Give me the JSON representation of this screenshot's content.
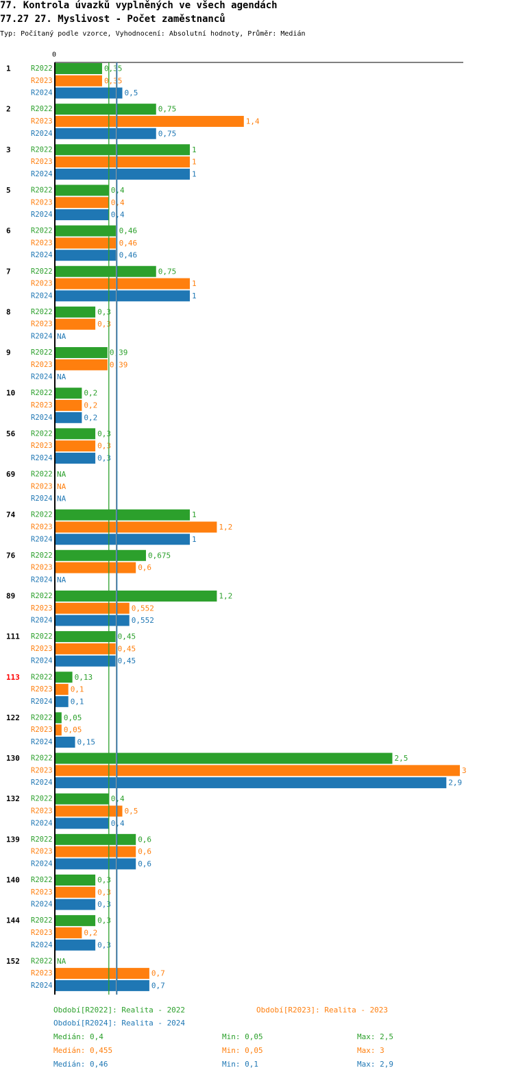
{
  "title": "77. Kontrola úvazků vyplněných ve všech agendách",
  "subtitle": "77.27 27. Myslivost - Počet zaměstnanců",
  "description": "Typ: Počítaný podle vzorce, Vyhodnocení: Absolutní hodnoty, Průměr: Medián",
  "colors": {
    "R2022": "#2ca02c",
    "R2023": "#ff7f0e",
    "R2024": "#1f77b4",
    "highlight": "#ff0000"
  },
  "chart_data": {
    "type": "bar",
    "orientation": "horizontal",
    "x_tick_label": "0",
    "xlim": [
      0,
      3
    ],
    "series_names": [
      "R2022",
      "R2023",
      "R2024"
    ],
    "groups": [
      {
        "label": "1",
        "highlight": false,
        "values": [
          {
            "v": 0.35,
            "t": "0,35"
          },
          {
            "v": 0.35,
            "t": "0,35"
          },
          {
            "v": 0.5,
            "t": "0,5"
          }
        ]
      },
      {
        "label": "2",
        "highlight": false,
        "values": [
          {
            "v": 0.75,
            "t": "0,75"
          },
          {
            "v": 1.4,
            "t": "1,4"
          },
          {
            "v": 0.75,
            "t": "0,75"
          }
        ]
      },
      {
        "label": "3",
        "highlight": false,
        "values": [
          {
            "v": 1,
            "t": "1"
          },
          {
            "v": 1,
            "t": "1"
          },
          {
            "v": 1,
            "t": "1"
          }
        ]
      },
      {
        "label": "5",
        "highlight": false,
        "values": [
          {
            "v": 0.4,
            "t": "0,4"
          },
          {
            "v": 0.4,
            "t": "0,4"
          },
          {
            "v": 0.4,
            "t": "0,4"
          }
        ]
      },
      {
        "label": "6",
        "highlight": false,
        "values": [
          {
            "v": 0.46,
            "t": "0,46"
          },
          {
            "v": 0.46,
            "t": "0,46"
          },
          {
            "v": 0.46,
            "t": "0,46"
          }
        ]
      },
      {
        "label": "7",
        "highlight": false,
        "values": [
          {
            "v": 0.75,
            "t": "0,75"
          },
          {
            "v": 1,
            "t": "1"
          },
          {
            "v": 1,
            "t": "1"
          }
        ]
      },
      {
        "label": "8",
        "highlight": false,
        "values": [
          {
            "v": 0.3,
            "t": "0,3"
          },
          {
            "v": 0.3,
            "t": "0,3"
          },
          {
            "v": null,
            "t": "NA"
          }
        ]
      },
      {
        "label": "9",
        "highlight": false,
        "values": [
          {
            "v": 0.39,
            "t": "0,39"
          },
          {
            "v": 0.39,
            "t": "0,39"
          },
          {
            "v": null,
            "t": "NA"
          }
        ]
      },
      {
        "label": "10",
        "highlight": false,
        "values": [
          {
            "v": 0.2,
            "t": "0,2"
          },
          {
            "v": 0.2,
            "t": "0,2"
          },
          {
            "v": 0.2,
            "t": "0,2"
          }
        ]
      },
      {
        "label": "56",
        "highlight": false,
        "values": [
          {
            "v": 0.3,
            "t": "0,3"
          },
          {
            "v": 0.3,
            "t": "0,3"
          },
          {
            "v": 0.3,
            "t": "0,3"
          }
        ]
      },
      {
        "label": "69",
        "highlight": false,
        "values": [
          {
            "v": null,
            "t": "NA"
          },
          {
            "v": null,
            "t": "NA"
          },
          {
            "v": null,
            "t": "NA"
          }
        ]
      },
      {
        "label": "74",
        "highlight": false,
        "values": [
          {
            "v": 1,
            "t": "1"
          },
          {
            "v": 1.2,
            "t": "1,2"
          },
          {
            "v": 1,
            "t": "1"
          }
        ]
      },
      {
        "label": "76",
        "highlight": false,
        "values": [
          {
            "v": 0.675,
            "t": "0,675"
          },
          {
            "v": 0.6,
            "t": "0,6"
          },
          {
            "v": null,
            "t": "NA"
          }
        ]
      },
      {
        "label": "89",
        "highlight": false,
        "values": [
          {
            "v": 1.2,
            "t": "1,2"
          },
          {
            "v": 0.552,
            "t": "0,552"
          },
          {
            "v": 0.552,
            "t": "0,552"
          }
        ]
      },
      {
        "label": "111",
        "highlight": false,
        "values": [
          {
            "v": 0.45,
            "t": "0,45"
          },
          {
            "v": 0.45,
            "t": "0,45"
          },
          {
            "v": 0.45,
            "t": "0,45"
          }
        ]
      },
      {
        "label": "113",
        "highlight": true,
        "values": [
          {
            "v": 0.13,
            "t": "0,13"
          },
          {
            "v": 0.1,
            "t": "0,1"
          },
          {
            "v": 0.1,
            "t": "0,1"
          }
        ]
      },
      {
        "label": "122",
        "highlight": false,
        "values": [
          {
            "v": 0.05,
            "t": "0,05"
          },
          {
            "v": 0.05,
            "t": "0,05"
          },
          {
            "v": 0.15,
            "t": "0,15"
          }
        ]
      },
      {
        "label": "130",
        "highlight": false,
        "values": [
          {
            "v": 2.5,
            "t": "2,5"
          },
          {
            "v": 3,
            "t": "3"
          },
          {
            "v": 2.9,
            "t": "2,9"
          }
        ]
      },
      {
        "label": "132",
        "highlight": false,
        "values": [
          {
            "v": 0.4,
            "t": "0,4"
          },
          {
            "v": 0.5,
            "t": "0,5"
          },
          {
            "v": 0.4,
            "t": "0,4"
          }
        ]
      },
      {
        "label": "139",
        "highlight": false,
        "values": [
          {
            "v": 0.6,
            "t": "0,6"
          },
          {
            "v": 0.6,
            "t": "0,6"
          },
          {
            "v": 0.6,
            "t": "0,6"
          }
        ]
      },
      {
        "label": "140",
        "highlight": false,
        "values": [
          {
            "v": 0.3,
            "t": "0,3"
          },
          {
            "v": 0.3,
            "t": "0,3"
          },
          {
            "v": 0.3,
            "t": "0,3"
          }
        ]
      },
      {
        "label": "144",
        "highlight": false,
        "values": [
          {
            "v": 0.3,
            "t": "0,3"
          },
          {
            "v": 0.2,
            "t": "0,2"
          },
          {
            "v": 0.3,
            "t": "0,3"
          }
        ]
      },
      {
        "label": "152",
        "highlight": false,
        "values": [
          {
            "v": null,
            "t": "NA"
          },
          {
            "v": 0.7,
            "t": "0,7"
          },
          {
            "v": 0.7,
            "t": "0,7"
          }
        ]
      }
    ],
    "reference_lines": [
      {
        "name": "median-R2022",
        "value": 0.4,
        "color": "#2ca02c"
      },
      {
        "name": "median-R2023",
        "value": 0.455,
        "color": "#999999"
      },
      {
        "name": "median-R2024",
        "value": 0.46,
        "color": "#1f77b4"
      }
    ]
  },
  "legend": {
    "periods": {
      "R2022": "Období[R2022]: Realita - 2022",
      "R2023": "Období[R2023]: Realita - 2023",
      "R2024": "Období[R2024]: Realita - 2024"
    },
    "stats": {
      "R2022": {
        "median": "Medián: 0,4",
        "min": "Min: 0,05",
        "max": "Max: 2,5"
      },
      "R2023": {
        "median": "Medián: 0,455",
        "min": "Min: 0,05",
        "max": "Max: 3"
      },
      "R2024": {
        "median": "Medián: 0,46",
        "min": "Min: 0,1",
        "max": "Max: 2,9"
      }
    }
  }
}
